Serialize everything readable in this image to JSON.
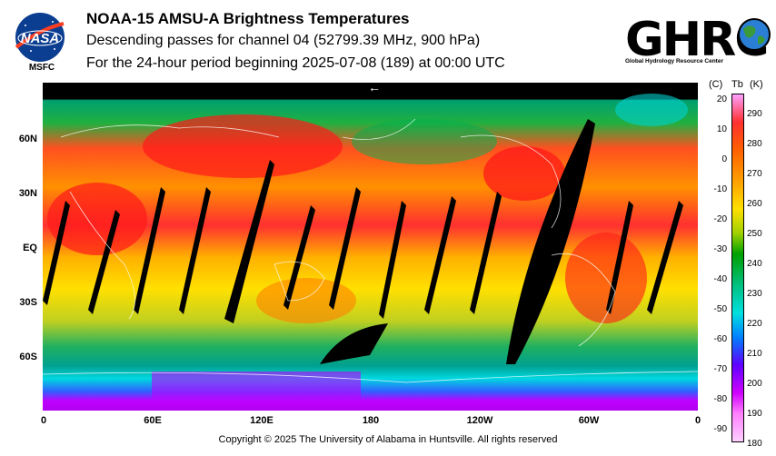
{
  "header": {
    "title": "NOAA-15 AMSU-A Brightness Temperatures",
    "subtitle": "Descending passes for channel 04 (52799.39 MHz, 900 hPa)",
    "period": "For the 24-hour period beginning 2025-07-08 (189) at 00:00 UTC"
  },
  "logos": {
    "nasa_wordmark": "NASA",
    "nasa_label": "MSFC",
    "ghrc_wordmark": "GHRC",
    "ghrc_subtitle": "Global Hydrology Resource Center"
  },
  "map": {
    "lat_labels": [
      "60N",
      "30N",
      "EQ",
      "30S",
      "60S"
    ],
    "lon_labels": [
      "0",
      "60E",
      "120E",
      "180",
      "120W",
      "60W",
      "0"
    ],
    "direction_arrow": "←",
    "colors": {
      "hot": "#ff1a1a",
      "warm": "#ff8000",
      "mild": "#ffe000",
      "cool": "#00b050",
      "cold": "#00d0d0",
      "coldest": "#c000ff",
      "swath_gap": "#000000"
    }
  },
  "colorbar": {
    "celsius_unit": "(C)",
    "tb_label": "Tb",
    "kelvin_unit": "(K)",
    "celsius_ticks": [
      "20",
      "10",
      "0",
      "-10",
      "-20",
      "-30",
      "-40",
      "-50",
      "-60",
      "-70",
      "-80",
      "-90"
    ],
    "kelvin_ticks": [
      "290",
      "280",
      "270",
      "260",
      "250",
      "240",
      "230",
      "220",
      "210",
      "200",
      "190",
      "180"
    ]
  },
  "footer": {
    "copyright": "Copyright © 2025 The University of Alabama in Huntsville.  All rights reserved"
  }
}
